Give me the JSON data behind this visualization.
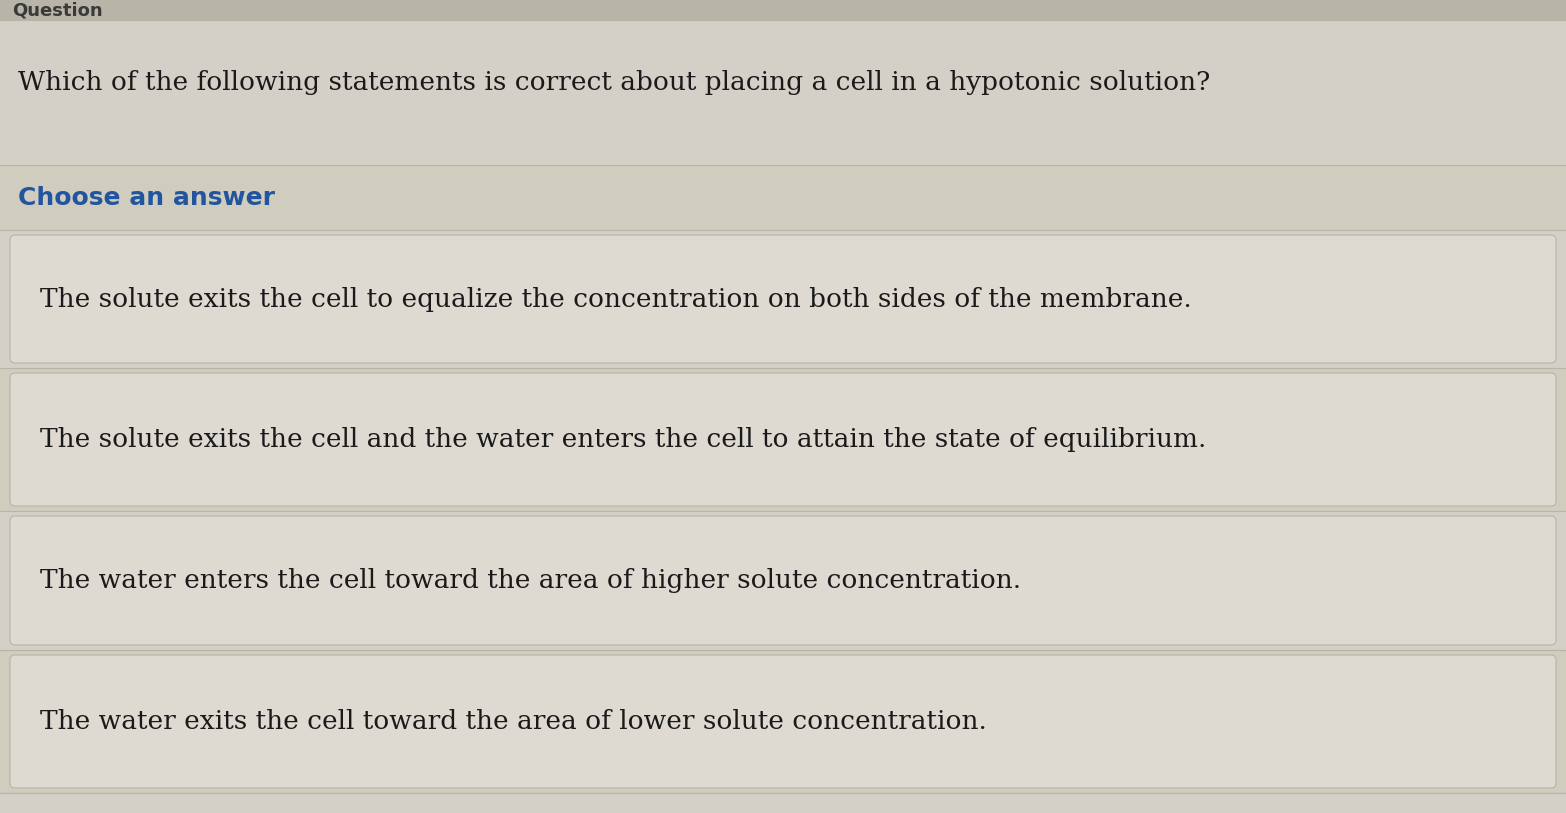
{
  "background_color": "#d4d0c8",
  "question_text": "Which of the following statements is correct about placing a cell in a hypotonic solution?",
  "choose_label": "Choose an answer",
  "answers": [
    "The solute exits the cell to equalize the concentration on both sides of the membrane.",
    "The solute exits the cell and the water enters the cell to attain the state of equilibrium.",
    "The water enters the cell toward the area of higher solute concentration.",
    "The water exits the cell toward the area of lower solute concentration."
  ],
  "question_font_size": 19,
  "choose_font_size": 18,
  "answer_font_size": 19,
  "question_color": "#1a1a1a",
  "choose_color": "#2255a0",
  "answer_color": "#1a1a1a",
  "top_header_bg": "#b8b4a8",
  "question_bg": "#d4d0c8",
  "choose_bg": "#d0ccbe",
  "answer_box_color": "#dedad2",
  "answer_box_edge": "#b8b4aa",
  "line_color": "#b8b4a8",
  "header_text": "Question",
  "header_color": "#3a3a3a"
}
